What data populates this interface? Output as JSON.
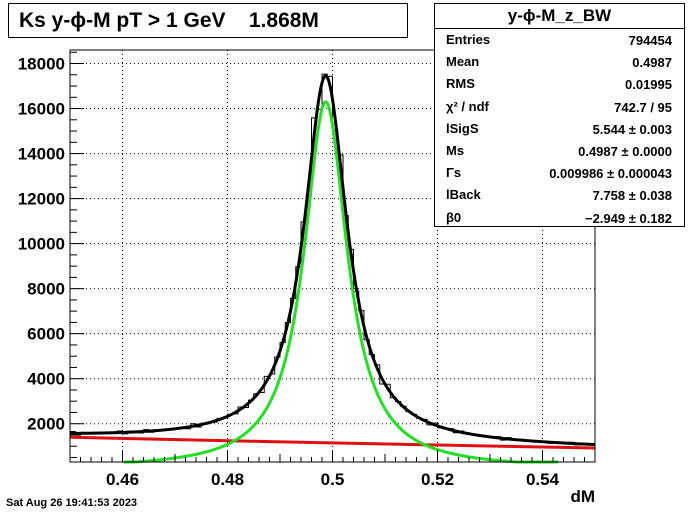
{
  "title": "Ks y-ϕ-M pT > 1 GeV    1.868M",
  "timestamp": "Sat Aug 26 19:41:53 2023",
  "stats": {
    "title": "y-ϕ-M_z_BW",
    "rows": [
      {
        "label": "Entries",
        "value": "794454"
      },
      {
        "label": "Mean",
        "value": "0.4987"
      },
      {
        "label": "RMS",
        "value": "0.01995"
      },
      {
        "label": "χ² / ndf",
        "value": "742.7 / 95"
      },
      {
        "label": "lSigS",
        "value": "5.544 ± 0.003"
      },
      {
        "label": "Ms",
        "value": "0.4987 ± 0.0000"
      },
      {
        "label": "Γs",
        "value": "0.009986 ± 0.000043"
      },
      {
        "label": "lBack",
        "value": "7.758 ± 0.038"
      },
      {
        "label": "β0",
        "value": "−2.949 ± 0.182"
      }
    ]
  },
  "chart_data": {
    "type": "line",
    "xlabel": "dM",
    "ylabel": "",
    "xlim": [
      0.45,
      0.55
    ],
    "ylim": [
      300,
      18600
    ],
    "xticks": [
      0.46,
      0.48,
      0.5,
      0.52,
      0.54
    ],
    "xtick_labels": [
      "0.46",
      "0.48",
      "0.5",
      "0.52",
      "0.54"
    ],
    "yticks": [
      2000,
      4000,
      6000,
      8000,
      10000,
      12000,
      14000,
      16000,
      18000
    ],
    "ytick_labels": [
      "2000",
      "4000",
      "6000",
      "8000",
      "10000",
      "12000",
      "14000",
      "16000",
      "18000"
    ],
    "grid": true,
    "colors": {
      "histogram": "#000000",
      "total_fit": "#000000",
      "signal": "#22e022",
      "background": "#e01010"
    },
    "series": [
      {
        "role": "histogram",
        "values": []
      },
      {
        "role": "total_fit",
        "values": []
      },
      {
        "role": "signal",
        "values": []
      },
      {
        "role": "background",
        "values": []
      }
    ]
  }
}
